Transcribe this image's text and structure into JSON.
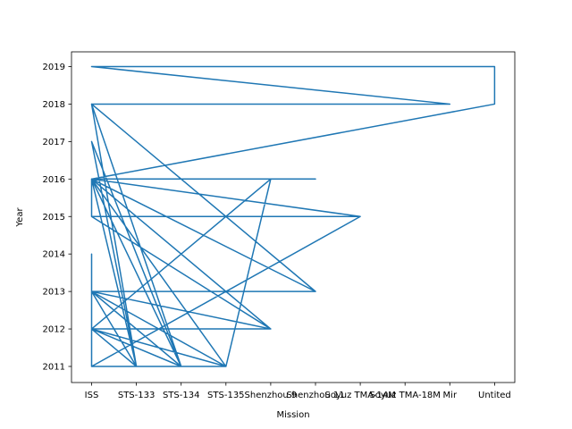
{
  "chart_data": {
    "type": "line",
    "title": "",
    "xlabel": "Mission",
    "ylabel": "Year",
    "categories": [
      "ISS",
      "STS-133",
      "STS-134",
      "STS-135",
      "Shenzhou 9",
      "Shenzhou 11",
      "Soyuz TMA-14M",
      "Soyuz TMA-18M",
      "Mir",
      "Untited"
    ],
    "ylim": [
      2011,
      2019
    ],
    "yticks": [
      2011,
      2012,
      2013,
      2014,
      2015,
      2016,
      2017,
      2018,
      2019
    ],
    "grid": false,
    "color": "#1f77b4",
    "series": [
      {
        "x": [
          "ISS",
          "STS-133",
          "ISS",
          "ISS",
          "STS-134",
          "ISS",
          "STS-135",
          "ISS",
          "ISS",
          "STS-133",
          "ISS",
          "ISS",
          "ISS",
          "STS-133",
          "ISS",
          "STS-134",
          "ISS",
          "STS-135",
          "ISS",
          "Shenzhou 9",
          "ISS",
          "STS-133",
          "ISS",
          "STS-134",
          "ISS",
          "ISS",
          "Soyuz TMA-14M",
          "ISS",
          "STS-133",
          "ISS",
          "STS-134",
          "ISS",
          "STS-135",
          "ISS",
          "Shenzhou 11",
          "ISS",
          "STS-133",
          "ISS",
          "STS-134",
          "ISS",
          "Mir",
          "ISS",
          "ISS",
          "Untited",
          "Untited",
          "ISS",
          "ISS",
          "STS-133",
          "ISS",
          "STS-134",
          "ISS",
          "STS-135",
          "Shenzhou 9",
          "ISS",
          "STS-133",
          "ISS",
          "STS-134",
          "ISS",
          "STS-135",
          "ISS",
          "Shenzhou 9",
          "ISS",
          "STS-133",
          "ISS",
          "STS-134",
          "ISS",
          "STS-135",
          "ISS",
          "Shenzhou 11",
          "ISS",
          "Shenzhou 11",
          "ISS",
          "Shenzhou 9",
          "ISS",
          "Shenzhou 9",
          "ISS",
          "Soyuz TMA-14M",
          "ISS",
          "ISS",
          "STS-134",
          "STS-135",
          "STS-133",
          "ISS"
        ],
        "y": [
          2011,
          2011,
          2011,
          2012,
          2011,
          2012,
          2011,
          2012,
          2013,
          2011,
          2013,
          2014,
          2012,
          2011,
          2013,
          2011,
          2013,
          2011,
          2012,
          2012,
          2016,
          2011,
          2016,
          2011,
          2016,
          2015,
          2015,
          2016,
          2011,
          2017,
          2011,
          2016,
          2011,
          2013,
          2013,
          2018,
          2011,
          2018,
          2011,
          2018,
          2018,
          2019,
          2019,
          2019,
          2018,
          2016,
          2016,
          2011,
          2018,
          2011,
          2016,
          2011,
          2016,
          2016,
          2011,
          2012,
          2011,
          2012,
          2011,
          2012,
          2012,
          2013,
          2011,
          2013,
          2011,
          2013,
          2011,
          2013,
          2013,
          2016,
          2016,
          2016,
          2016,
          2012,
          2012,
          2015,
          2015,
          2011,
          2012,
          2011,
          2011,
          2011,
          2011
        ]
      }
    ]
  }
}
